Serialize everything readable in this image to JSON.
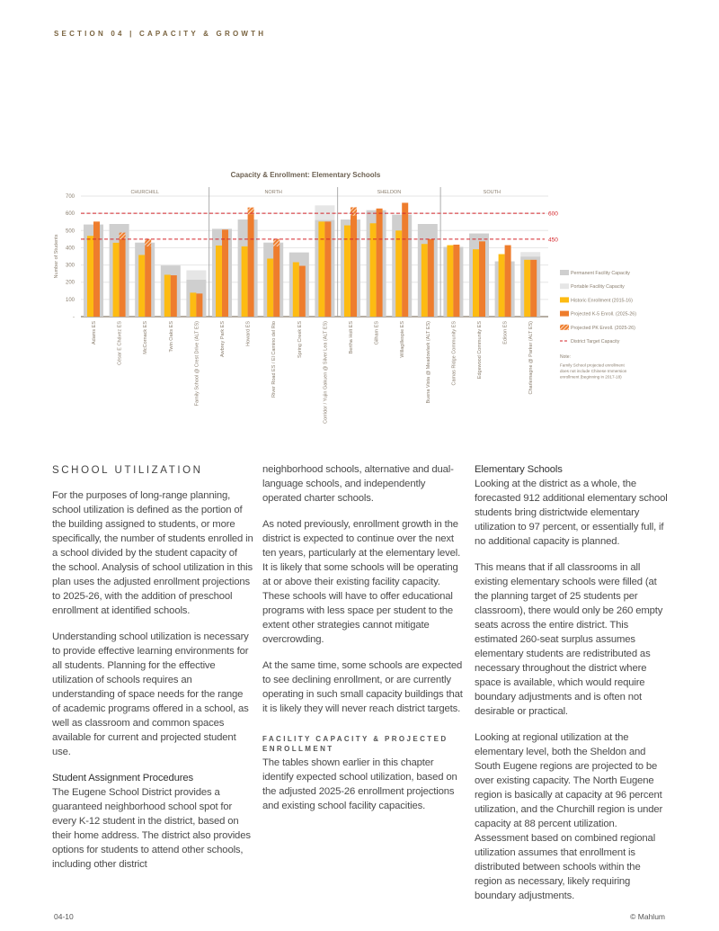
{
  "header": {
    "section": "SECTION 04 | CAPACITY & GROWTH"
  },
  "chart_data": {
    "type": "bar",
    "title": "Capacity & Enrollment: Elementary Schools",
    "ylabel": "Number of Students",
    "ylim": [
      0,
      700
    ],
    "yticks": [
      "-",
      "100",
      "200",
      "300",
      "400",
      "500",
      "600",
      "700"
    ],
    "grid": true,
    "legend_position": "right",
    "regions": [
      {
        "name": "CHURCHILL",
        "count": 5
      },
      {
        "name": "NORTH",
        "count": 5
      },
      {
        "name": "SHELDON",
        "count": 4
      },
      {
        "name": "SOUTH",
        "count": 4
      }
    ],
    "categories": [
      "Adams ES",
      "César E Chávez ES",
      "McCornack ES",
      "Twin Oaks ES",
      "Family School @ Crest Drive (ALT ES)",
      "Awbrey Park ES",
      "Howard ES",
      "River Road ES / El Camino del Rio",
      "Spring Creek ES",
      "Corridor / Yujin Gakuen @ Silver Lea (ALT ES)",
      "Bertha Holt ES",
      "Gilham ES",
      "Willagillespie ES",
      "Buena Vista @ Meadowlark (ALT ES)",
      "Camas Ridge Community ES",
      "Edgewood Community ES",
      "Edison ES",
      "Charlemagne @ Parker (ALT ES)"
    ],
    "series": [
      {
        "name": "Permanent Facility Capacity",
        "color": "#cfcfcf",
        "values": [
          535,
          538,
          430,
          297,
          214,
          510,
          564,
          430,
          373,
          561,
          564,
          618,
          592,
          538,
          405,
          483,
          321,
          349
        ]
      },
      {
        "name": "Portable Facility Capacity",
        "color": "#e6e6e6",
        "values": [
          0,
          0,
          0,
          0,
          55,
          0,
          0,
          0,
          0,
          85,
          0,
          0,
          0,
          0,
          0,
          0,
          0,
          26
        ]
      },
      {
        "name": "Historic Enrollment (2015-16)",
        "color": "#fdbb12",
        "values": [
          469,
          429,
          358,
          243,
          139,
          413,
          408,
          337,
          316,
          552,
          530,
          542,
          500,
          422,
          415,
          391,
          363,
          330
        ]
      },
      {
        "name": "Projected K-5 Enroll. (2025-26)",
        "color": "#ee7d2d",
        "values": [
          552,
          450,
          408,
          240,
          134,
          505,
          595,
          408,
          295,
          552,
          587,
          628,
          661,
          450,
          418,
          437,
          415,
          330
        ]
      },
      {
        "name": "Projected PK Enroll. (2025-26)",
        "color": "#ee7d2d",
        "pattern": "hatched",
        "values": [
          0,
          38,
          42,
          0,
          0,
          0,
          39,
          43,
          0,
          0,
          48,
          0,
          0,
          0,
          0,
          0,
          0,
          0
        ]
      }
    ],
    "reference_lines": [
      {
        "name": "District Target Capacity",
        "values": [
          600,
          450
        ],
        "labels": [
          "600",
          "450"
        ],
        "color": "#d4242a"
      }
    ],
    "note": [
      "Note:",
      "Family School projected enrollment",
      "does not include Chinese Immersion",
      "enrollment (beginning in 2017-18)"
    ]
  },
  "body": {
    "col1": {
      "heading": "SCHOOL UTILIZATION",
      "p1": "For the purposes of long-range planning, school utilization is defined as the portion of the building assigned to students, or more specifically, the number of students enrolled in a school divided by the student capacity of the school. Analysis of school utilization in this plan uses the adjusted enrollment projections to 2025-26, with the addition of preschool enrollment at identified schools.",
      "p2": "Understanding school utilization is necessary to provide effective learning environments for all students. Planning for the effective utilization of schools requires an understanding of space needs for the range of academic programs offered in a school, as well as classroom and common spaces available for current and projected student use.",
      "subheading": "Student Assignment Procedures",
      "p3": "The Eugene School District provides a guaranteed neighborhood school spot for every K-12 student in the district, based on their home address. The district also provides options for students to attend other schools, including other district"
    },
    "col2": {
      "p1": "neighborhood schools, alternative and dual-language schools, and independently operated charter schools.",
      "p2": "As noted previously, enrollment growth in the district is expected to continue over the next ten years, particularly at the elementary level. It is likely that some schools will be operating at or above their existing facility capacity. These schools will have to offer educational programs with less space per student to the extent other strategies cannot mitigate overcrowding.",
      "p3": "At the same time, some schools are expected to see declining enrollment, or are currently operating in such small capacity buildings that it is likely they will never reach district targets.",
      "heading": "FACILITY CAPACITY & PROJECTED ENROLLMENT",
      "p4": "The tables shown earlier in this chapter identify expected school utilization, based on the adjusted 2025-26 enrollment projections and existing school facility capacities."
    },
    "col3": {
      "subheading": "Elementary Schools",
      "p1": "Looking at the district as a whole, the forecasted 912 additional elementary school students bring districtwide elementary utilization to 97 percent, or essentially full, if no additional capacity is planned.",
      "p2": "This means that if all classrooms in all existing elementary schools were filled (at the planning target of 25 students per classroom), there would only be 260 empty seats across the entire district. This estimated 260-seat surplus assumes elementary students are redistributed as necessary throughout the district where space is available, which would require boundary adjustments and is often not desirable or practical.",
      "p3": "Looking at regional utilization at the elementary level, both the Sheldon and South Eugene regions are projected to be over existing capacity. The North Eugene region is basically at capacity at 96 percent utilization, and the Churchill region is under capacity at 88 percent utilization. Assessment based on combined regional utilization assumes that enrollment is distributed between schools within the region as necessary, likely requiring boundary adjustments."
    }
  },
  "footer": {
    "page": "04-10",
    "credit": "© Mahlum"
  }
}
